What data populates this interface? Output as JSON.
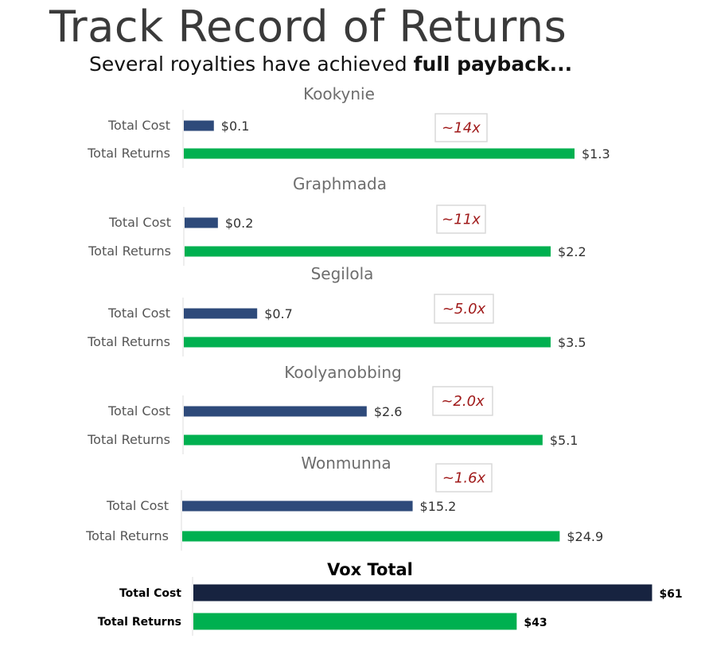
{
  "title": "Track Record of Returns",
  "subtitle_prefix": "Several royalties have achieved ",
  "subtitle_bold": "full payback...",
  "colors": {
    "cost": "#2e4a7a",
    "returns": "#00b050",
    "total_cost": "#172340",
    "multiple_text": "#a01a1a"
  },
  "chart_data": [
    {
      "type": "bar",
      "orientation": "horizontal",
      "title": "Kookynie",
      "categories": [
        "Total Cost",
        "Total Returns"
      ],
      "values": [
        0.1,
        1.3
      ],
      "value_labels": [
        "$0.1",
        "$1.3"
      ],
      "multiple": "~14x"
    },
    {
      "type": "bar",
      "orientation": "horizontal",
      "title": "Graphmada",
      "categories": [
        "Total Cost",
        "Total Returns"
      ],
      "values": [
        0.2,
        2.2
      ],
      "value_labels": [
        "$0.2",
        "$2.2"
      ],
      "multiple": "~11x"
    },
    {
      "type": "bar",
      "orientation": "horizontal",
      "title": "Segilola",
      "categories": [
        "Total Cost",
        "Total Returns"
      ],
      "values": [
        0.7,
        3.5
      ],
      "value_labels": [
        "$0.7",
        "$3.5"
      ],
      "multiple": "~5.0x"
    },
    {
      "type": "bar",
      "orientation": "horizontal",
      "title": "Koolyanobbing",
      "categories": [
        "Total Cost",
        "Total Returns"
      ],
      "values": [
        2.6,
        5.1
      ],
      "value_labels": [
        "$2.6",
        "$5.1"
      ],
      "multiple": "~2.0x"
    },
    {
      "type": "bar",
      "orientation": "horizontal",
      "title": "Wonmunna",
      "categories": [
        "Total Cost",
        "Total Returns"
      ],
      "values": [
        15.2,
        24.9
      ],
      "value_labels": [
        "$15.2",
        "$24.9"
      ],
      "multiple": "~1.6x"
    },
    {
      "type": "bar",
      "orientation": "horizontal",
      "title": "Vox Total",
      "categories": [
        "Total Cost",
        "Total Returns"
      ],
      "values": [
        61,
        43
      ],
      "value_labels": [
        "$61",
        "$43"
      ]
    }
  ]
}
